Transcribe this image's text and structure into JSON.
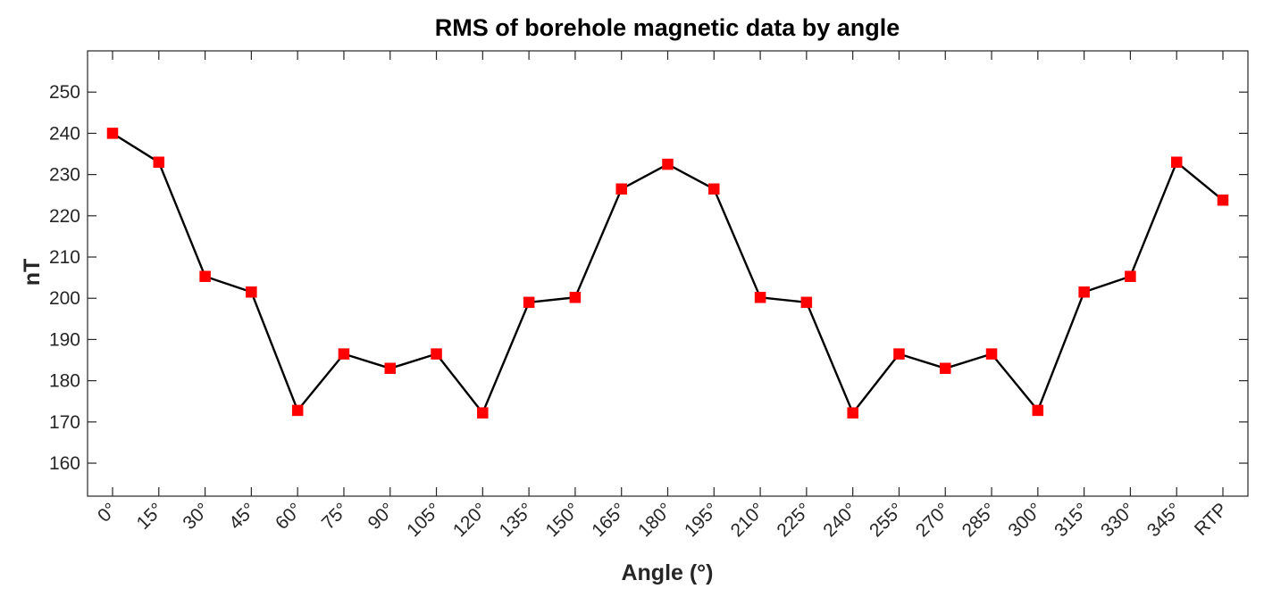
{
  "chart_data": {
    "type": "line",
    "title": "RMS of borehole magnetic data by angle",
    "xlabel": "Angle (°)",
    "ylabel": "nT",
    "categories": [
      "0°",
      "15°",
      "30°",
      "45°",
      "60°",
      "75°",
      "90°",
      "105°",
      "120°",
      "135°",
      "150°",
      "165°",
      "180°",
      "195°",
      "210°",
      "225°",
      "240°",
      "255°",
      "270°",
      "285°",
      "300°",
      "315°",
      "330°",
      "345°",
      "RTP"
    ],
    "series": [
      {
        "name": "RMS",
        "values": [
          240,
          233,
          205.3,
          201.5,
          172.8,
          186.5,
          183,
          186.5,
          172.2,
          199,
          200.2,
          226.5,
          232.5,
          226.5,
          200.2,
          199,
          172.2,
          186.5,
          183,
          186.5,
          172.8,
          201.5,
          205.3,
          233,
          223.8
        ],
        "line_color": "#000000",
        "marker_color": "#ff0000",
        "marker": "square"
      }
    ],
    "ylim": [
      152,
      260
    ],
    "yticks": [
      160,
      170,
      180,
      190,
      200,
      210,
      220,
      230,
      240,
      250
    ],
    "grid": false,
    "legend": "none"
  }
}
